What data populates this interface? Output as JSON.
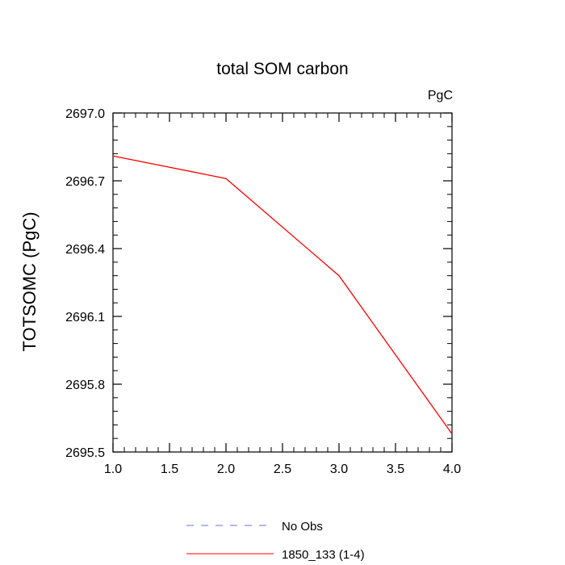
{
  "chart_data": {
    "type": "line",
    "title": "total SOM carbon",
    "units_label": "PgC",
    "xlabel": "",
    "ylabel": "TOTSOMC  (PgC)",
    "xlim": [
      1.0,
      4.0
    ],
    "ylim": [
      2695.5,
      2697.0
    ],
    "x_ticks": [
      "1.0",
      "1.5",
      "2.0",
      "2.5",
      "3.0",
      "3.5",
      "4.0"
    ],
    "y_ticks": [
      "2695.5",
      "2695.8",
      "2696.1",
      "2696.4",
      "2696.7",
      "2697.0"
    ],
    "series": [
      {
        "name": "1850_133 (1-4)",
        "color": "#ff0000",
        "dash": "solid",
        "x": [
          1,
          2,
          3,
          4
        ],
        "values": [
          2696.81,
          2696.71,
          2696.28,
          2695.58
        ]
      }
    ],
    "legend": {
      "placement": "bottom-center",
      "entries": [
        {
          "label": "No Obs",
          "color": "#6f6fdb",
          "dash": "dashed"
        },
        {
          "label": "1850_133 (1-4)",
          "color": "#ff0000",
          "dash": "solid"
        }
      ]
    }
  }
}
